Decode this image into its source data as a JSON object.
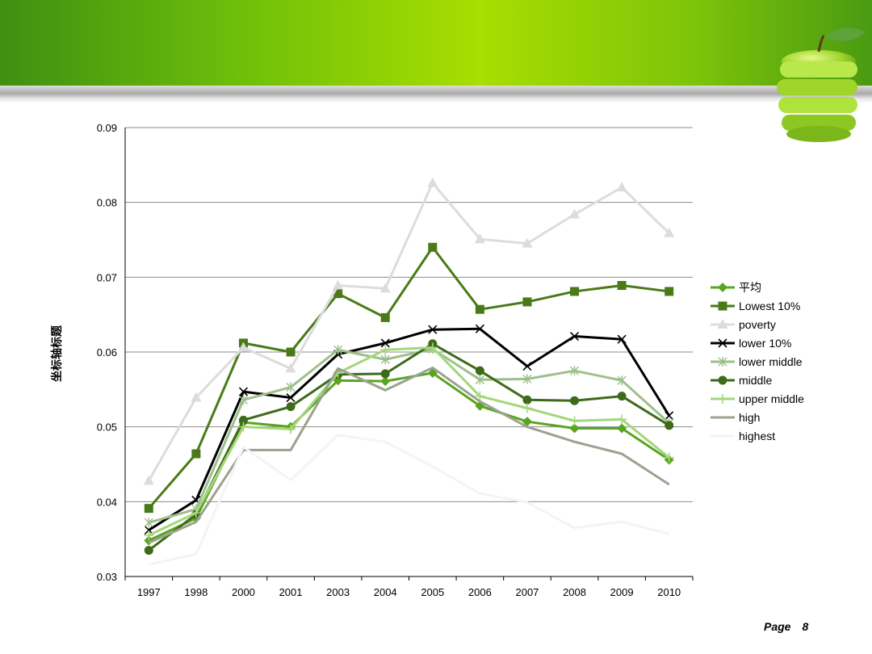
{
  "page": {
    "label": "Page",
    "number": "8"
  },
  "chart_data": {
    "type": "line",
    "title": "",
    "xlabel": "",
    "ylabel": "坐标轴标题",
    "ylim": [
      0.03,
      0.09
    ],
    "yticks": [
      "0.03",
      "0.04",
      "0.05",
      "0.06",
      "0.07",
      "0.08",
      "0.09"
    ],
    "categories": [
      "1997",
      "1998",
      "2000",
      "2001",
      "2003",
      "2004",
      "2005",
      "2006",
      "2007",
      "2008",
      "2009",
      "2010"
    ],
    "grid": true,
    "legend_position": "right",
    "series": [
      {
        "name": "平均",
        "color": "#5aa51f",
        "marker": "diamond",
        "width": 3,
        "values": [
          0.0348,
          0.0378,
          0.0506,
          0.05,
          0.0562,
          0.0561,
          0.0572,
          0.0528,
          0.0507,
          0.0498,
          0.0498,
          0.0456
        ]
      },
      {
        "name": "Lowest 10%",
        "color": "#4a7a17",
        "marker": "square",
        "width": 3,
        "values": [
          0.0391,
          0.0464,
          0.0612,
          0.06,
          0.0678,
          0.0646,
          0.074,
          0.0657,
          0.0667,
          0.0681,
          0.0689,
          0.0681
        ]
      },
      {
        "name": "poverty",
        "color": "#dcdcdc",
        "marker": "triangle",
        "width": 3,
        "values": [
          0.0428,
          0.0539,
          0.0606,
          0.0578,
          0.0689,
          0.0685,
          0.0826,
          0.0751,
          0.0745,
          0.0784,
          0.082,
          0.0759
        ]
      },
      {
        "name": "lower 10%",
        "color": "#000000",
        "marker": "x",
        "width": 3,
        "values": [
          0.0362,
          0.0402,
          0.0547,
          0.0539,
          0.0597,
          0.0612,
          0.063,
          0.0631,
          0.0581,
          0.0621,
          0.0617,
          0.0515
        ]
      },
      {
        "name": "lower middle",
        "color": "#9dc08b",
        "marker": "star",
        "width": 3,
        "values": [
          0.0372,
          0.039,
          0.0536,
          0.0553,
          0.0603,
          0.059,
          0.0604,
          0.0563,
          0.0564,
          0.0575,
          0.0562,
          0.0505
        ]
      },
      {
        "name": "middle",
        "color": "#3d6b1a",
        "marker": "circle",
        "width": 3,
        "values": [
          0.0335,
          0.0383,
          0.0509,
          0.0527,
          0.057,
          0.0571,
          0.0611,
          0.0575,
          0.0536,
          0.0535,
          0.0541,
          0.0502
        ]
      },
      {
        "name": "upper middle",
        "color": "#a4d67c",
        "marker": "plus",
        "width": 3,
        "values": [
          0.0355,
          0.0385,
          0.05,
          0.0497,
          0.0572,
          0.0603,
          0.0606,
          0.0541,
          0.0525,
          0.0508,
          0.051,
          0.0459
        ]
      },
      {
        "name": "high",
        "color": "#9aa38f",
        "marker": "none",
        "width": 3,
        "values": [
          0.0345,
          0.0373,
          0.0469,
          0.0469,
          0.0578,
          0.0549,
          0.0579,
          0.0534,
          0.05,
          0.048,
          0.0464,
          0.0423
        ]
      },
      {
        "name": "highest",
        "color": "#f4f4f4",
        "marker": "none",
        "width": 3,
        "values": [
          0.0316,
          0.033,
          0.0473,
          0.0429,
          0.0489,
          0.048,
          0.0447,
          0.0411,
          0.0399,
          0.0365,
          0.0373,
          0.0357
        ]
      }
    ]
  }
}
